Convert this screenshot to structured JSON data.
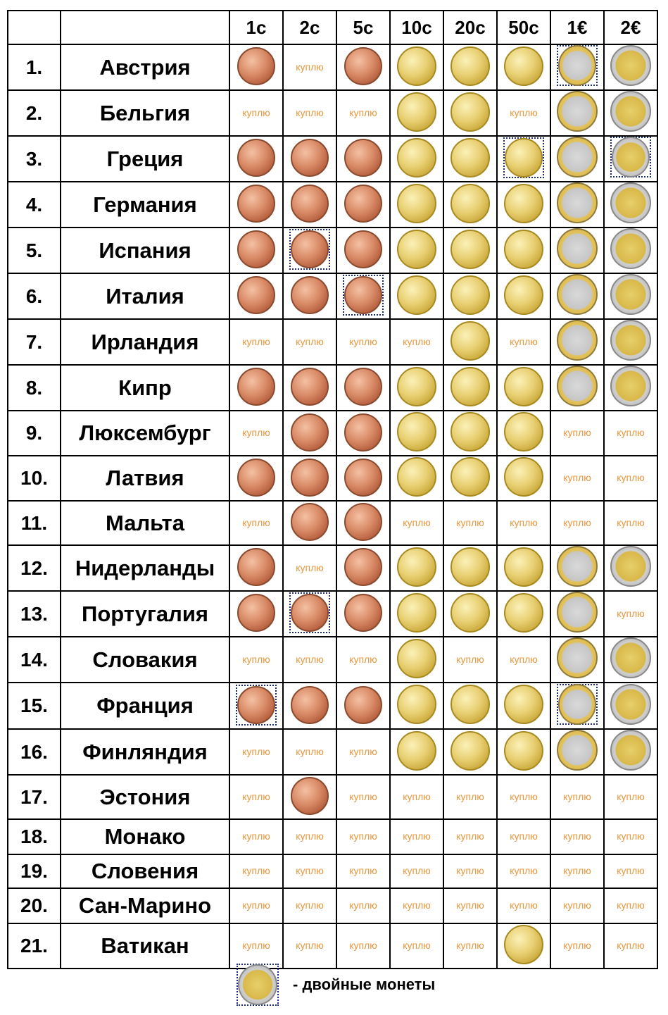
{
  "header": {
    "blank1": "",
    "blank2": "",
    "columns": [
      "1c",
      "2c",
      "5c",
      "10c",
      "20c",
      "50c",
      "1€",
      "2€"
    ]
  },
  "buy_label": "куплю",
  "rows": [
    {
      "num": "1.",
      "country": "Австрия",
      "cells": [
        "C",
        "B",
        "C",
        "G",
        "G",
        "G",
        "M1D",
        "M2"
      ]
    },
    {
      "num": "2.",
      "country": "Бельгия",
      "cells": [
        "B",
        "B",
        "B",
        "G",
        "G",
        "B",
        "M1",
        "M2"
      ]
    },
    {
      "num": "3.",
      "country": "Греция",
      "cells": [
        "C",
        "C",
        "C",
        "G",
        "G",
        "GD",
        "M1",
        "M2D"
      ]
    },
    {
      "num": "4.",
      "country": "Германия",
      "cells": [
        "C",
        "C",
        "C",
        "G",
        "G",
        "G",
        "M1",
        "M2"
      ]
    },
    {
      "num": "5.",
      "country": "Испания",
      "cells": [
        "C",
        "CD",
        "C",
        "G",
        "G",
        "G",
        "M1",
        "M2"
      ]
    },
    {
      "num": "6.",
      "country": "Италия",
      "cells": [
        "C",
        "C",
        "CD",
        "G",
        "G",
        "G",
        "M1",
        "M2"
      ]
    },
    {
      "num": "7.",
      "country": "Ирландия",
      "cells": [
        "B",
        "B",
        "B",
        "B",
        "G",
        "B",
        "M1",
        "M2"
      ]
    },
    {
      "num": "8.",
      "country": "Кипр",
      "cells": [
        "C",
        "C",
        "C",
        "G",
        "G",
        "G",
        "M1",
        "M2"
      ]
    },
    {
      "num": "9.",
      "country": "Люксембург",
      "cells": [
        "B",
        "C",
        "C",
        "G",
        "G",
        "G",
        "B",
        "B"
      ]
    },
    {
      "num": "10.",
      "country": "Латвия",
      "cells": [
        "C",
        "C",
        "C",
        "G",
        "G",
        "G",
        "B",
        "B"
      ]
    },
    {
      "num": "11.",
      "country": "Мальта",
      "cells": [
        "B",
        "C",
        "C",
        "B",
        "B",
        "B",
        "B",
        "B"
      ]
    },
    {
      "num": "12.",
      "country": "Нидерланды",
      "cells": [
        "C",
        "B",
        "C",
        "G",
        "G",
        "G",
        "M1",
        "M2"
      ]
    },
    {
      "num": "13.",
      "country": "Португалия",
      "cells": [
        "C",
        "CD",
        "C",
        "G",
        "G",
        "G",
        "M1",
        "B"
      ]
    },
    {
      "num": "14.",
      "country": "Словакия",
      "cells": [
        "B",
        "B",
        "B",
        "G",
        "B",
        "B",
        "M1",
        "M2"
      ]
    },
    {
      "num": "15.",
      "country": "Франция",
      "cells": [
        "CD",
        "C",
        "C",
        "G",
        "G",
        "G",
        "M1D",
        "M2"
      ]
    },
    {
      "num": "16.",
      "country": "Финляндия",
      "cells": [
        "B",
        "B",
        "B",
        "G",
        "G",
        "G",
        "M1",
        "M2"
      ]
    },
    {
      "num": "17.",
      "country": "Эстония",
      "cells": [
        "B",
        "C",
        "B",
        "B",
        "B",
        "B",
        "B",
        "B"
      ]
    },
    {
      "num": "18.",
      "country": "Монако",
      "cells": [
        "B",
        "B",
        "B",
        "B",
        "B",
        "B",
        "B",
        "B"
      ]
    },
    {
      "num": "19.",
      "country": "Словения",
      "cells": [
        "B",
        "B",
        "B",
        "B",
        "B",
        "B",
        "B",
        "B"
      ]
    },
    {
      "num": "20.",
      "country": "Сан-Марино",
      "cells": [
        "B",
        "B",
        "B",
        "B",
        "B",
        "B",
        "B",
        "B"
      ]
    },
    {
      "num": "21.",
      "country": "Ватикан",
      "cells": [
        "B",
        "B",
        "B",
        "B",
        "B",
        "G",
        "B",
        "B"
      ]
    }
  ],
  "legend": {
    "text": "- двойные монеты"
  },
  "colors": {
    "buy_text": "#e8963c",
    "double_border": "#1a2a8a"
  }
}
